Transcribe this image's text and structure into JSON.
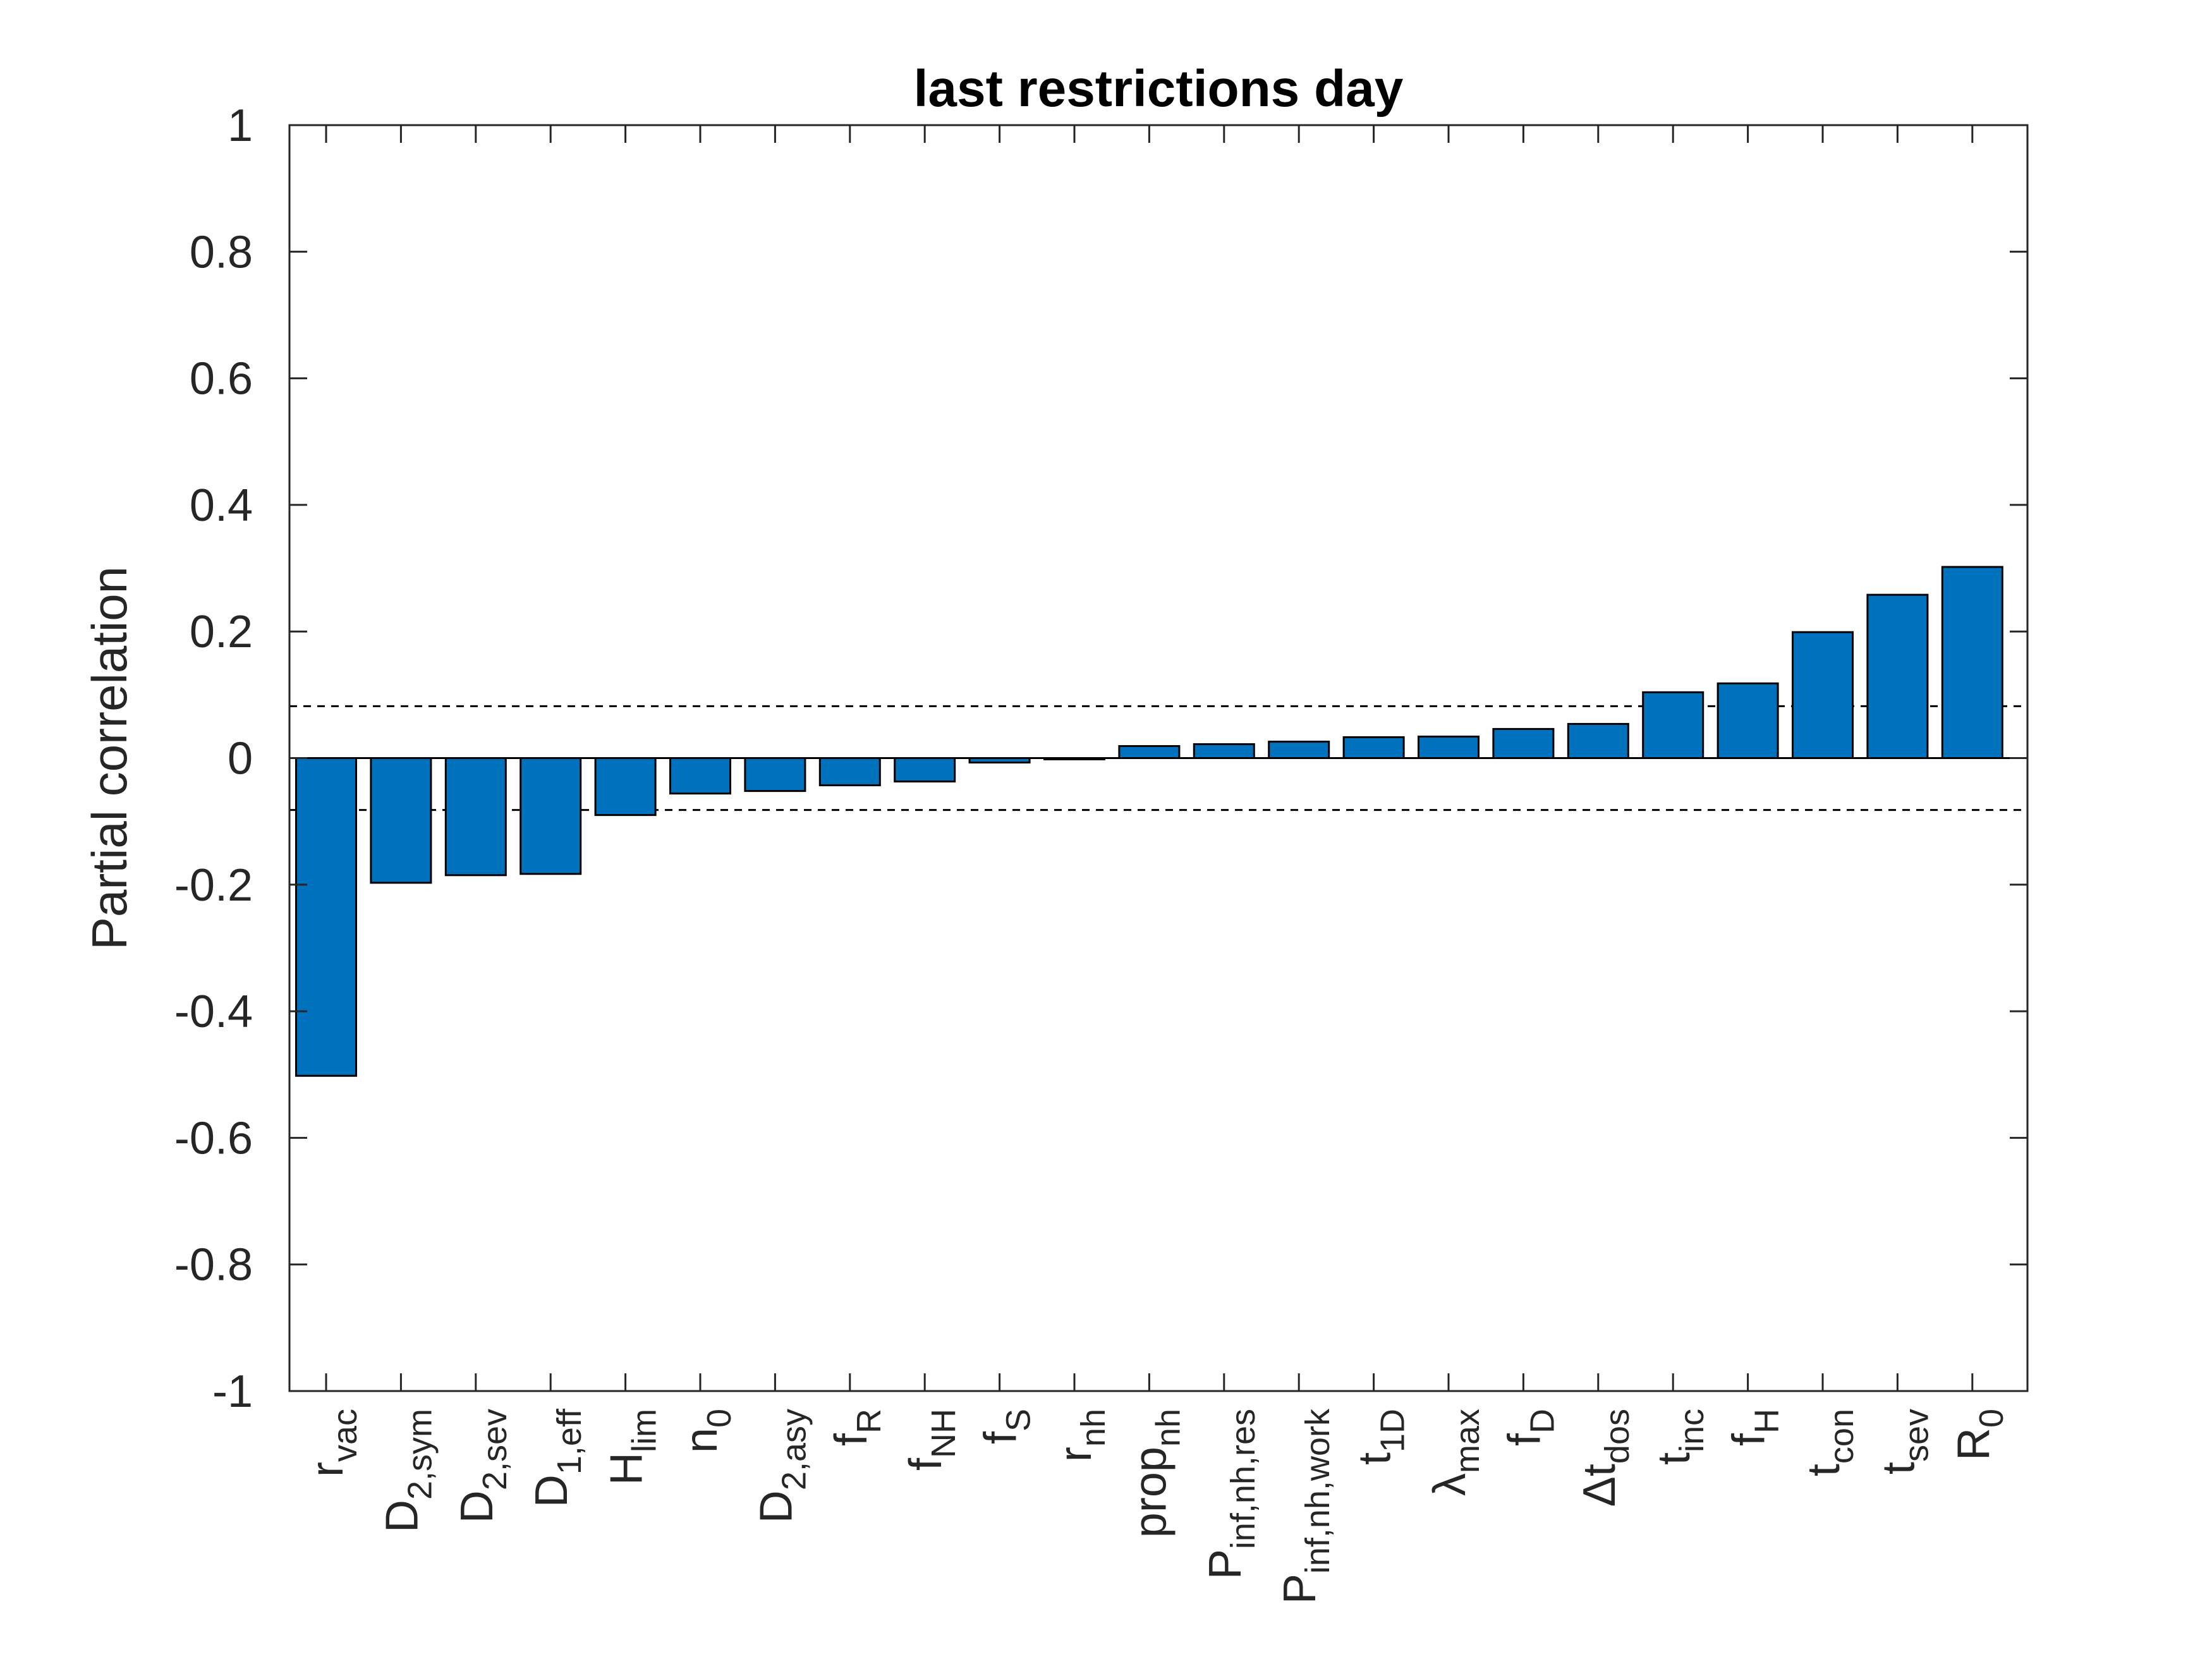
{
  "chart_data": {
    "type": "bar",
    "title": "last restrictions day",
    "ylabel": "Partial correlation",
    "xlabel": "",
    "ylim": [
      -1,
      1
    ],
    "yticks": [
      -1,
      -0.8,
      -0.6,
      -0.4,
      -0.2,
      0,
      0.2,
      0.4,
      0.6,
      0.8,
      1
    ],
    "ytick_labels": [
      "-1",
      "-0.8",
      "-0.6",
      "-0.4",
      "-0.2",
      "0",
      "0.2",
      "0.4",
      "0.6",
      "0.8",
      "1"
    ],
    "threshold": 0.082,
    "bar_color": "#0072BD",
    "categories": [
      {
        "base": "r",
        "sub": "vac"
      },
      {
        "base": "D",
        "sub": "2,sym"
      },
      {
        "base": "D",
        "sub": "2,sev"
      },
      {
        "base": "D",
        "sub": "1,eff"
      },
      {
        "base": "H",
        "sub": "lim"
      },
      {
        "base": "n",
        "sub": "0"
      },
      {
        "base": "D",
        "sub": "2,asy"
      },
      {
        "base": "f",
        "sub": "R"
      },
      {
        "base": "f",
        "sub": "NH"
      },
      {
        "base": "f",
        "sub": "S"
      },
      {
        "base": "r",
        "sub": "nh"
      },
      {
        "base": "prop",
        "sub": "nh"
      },
      {
        "base": "P",
        "sub": "inf,nh,res"
      },
      {
        "base": "P",
        "sub": "inf,nh,work"
      },
      {
        "base": "t",
        "sub": "1D"
      },
      {
        "base": "λ",
        "sub": "max"
      },
      {
        "base": "f",
        "sub": "D"
      },
      {
        "base": "Δt",
        "sub": "dos"
      },
      {
        "base": "t",
        "sub": "inc"
      },
      {
        "base": "f",
        "sub": "H"
      },
      {
        "base": "t",
        "sub": "con"
      },
      {
        "base": "t",
        "sub": "sev"
      },
      {
        "base": "R",
        "sub": "0"
      }
    ],
    "values": [
      -0.502,
      -0.197,
      -0.185,
      -0.183,
      -0.09,
      -0.056,
      -0.052,
      -0.043,
      -0.037,
      -0.007,
      -0.002,
      0.019,
      0.022,
      0.026,
      0.033,
      0.034,
      0.046,
      0.054,
      0.104,
      0.118,
      0.199,
      0.258,
      0.302
    ]
  }
}
